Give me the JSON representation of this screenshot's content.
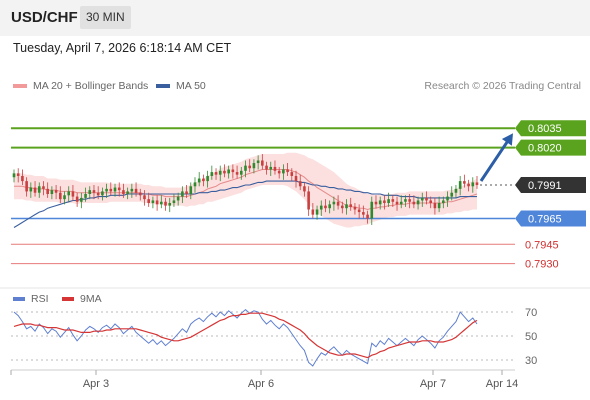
{
  "header": {
    "symbol": "USD/CHF",
    "timeframe": "30 MIN"
  },
  "datetime": "Tuesday, April 7, 2026 6:18:14 AM CET",
  "legend": {
    "ma20_bb": "MA 20 + Bollinger Bands",
    "ma50": "MA 50"
  },
  "source": "Research © 2026 Trading Central",
  "rsi_legend": {
    "rsi": "RSI",
    "ma9": "9MA"
  },
  "colors": {
    "resistance": "#5aa31e",
    "current": "#333333",
    "pivot": "#4f86d9",
    "support": "#e05858",
    "band": "#fbd9d9",
    "ma20": "#e58a8a",
    "ma50": "#3a5f9f",
    "arrow": "#2b5ea6",
    "up": "#2f8a2f",
    "down": "#c94040",
    "rsi": "#5f7fd0",
    "rsi_ma": "#d63535"
  },
  "chart_data": {
    "type": "candlestick",
    "price_axis_range": [
      0.7915,
      0.806
    ],
    "levels": [
      {
        "label": "0.8035",
        "value": 0.8035,
        "kind": "resistance"
      },
      {
        "label": "0.8020",
        "value": 0.802,
        "kind": "resistance"
      },
      {
        "label": "0.7991",
        "value": 0.7991,
        "kind": "current"
      },
      {
        "label": "0.7965",
        "value": 0.7965,
        "kind": "pivot"
      },
      {
        "label": "0.7945",
        "value": 0.7945,
        "kind": "support"
      },
      {
        "label": "0.7930",
        "value": 0.793,
        "kind": "support"
      }
    ],
    "forecast_arrow": {
      "from_value": 0.7991,
      "to_value": 0.8035
    },
    "x_labels": [
      "Apr 3",
      "Apr 6",
      "Apr 7",
      "Apr 14"
    ],
    "closes": [
      0.8,
      0.7998,
      0.7994,
      0.7986,
      0.7989,
      0.7985,
      0.799,
      0.7988,
      0.7984,
      0.7987,
      0.7985,
      0.798,
      0.7983,
      0.7986,
      0.7982,
      0.7978,
      0.7981,
      0.7984,
      0.7987,
      0.7985,
      0.7983,
      0.7986,
      0.7988,
      0.7986,
      0.7989,
      0.7987,
      0.7984,
      0.7986,
      0.7988,
      0.7985,
      0.7983,
      0.798,
      0.7977,
      0.7979,
      0.7976,
      0.7978,
      0.7975,
      0.7977,
      0.7979,
      0.7982,
      0.7986,
      0.7984,
      0.799,
      0.7993,
      0.7996,
      0.7994,
      0.7998,
      0.8001,
      0.7999,
      0.8002,
      0.8,
      0.8003,
      0.8001,
      0.7999,
      0.8002,
      0.8006,
      0.8004,
      0.8008,
      0.801,
      0.8006,
      0.8003,
      0.8005,
      0.8002,
      0.8,
      0.8003,
      0.8001,
      0.7998,
      0.7994,
      0.799,
      0.7986,
      0.7972,
      0.7968,
      0.7972,
      0.7975,
      0.7973,
      0.7976,
      0.7978,
      0.7975,
      0.7973,
      0.7976,
      0.7974,
      0.7972,
      0.797,
      0.7968,
      0.7965,
      0.7978,
      0.7976,
      0.7979,
      0.7977,
      0.798,
      0.7978,
      0.7976,
      0.7978,
      0.798,
      0.7978,
      0.7976,
      0.7979,
      0.7981,
      0.7979,
      0.7977,
      0.7973,
      0.7977,
      0.7979,
      0.7982,
      0.7985,
      0.7988,
      0.7994,
      0.7992,
      0.799,
      0.7993,
      0.7991
    ],
    "ma20": [
      0.799,
      0.799,
      0.799,
      0.7989,
      0.7989,
      0.7988,
      0.7988,
      0.7988,
      0.7987,
      0.7987,
      0.7987,
      0.7986,
      0.7986,
      0.7986,
      0.7986,
      0.7985,
      0.7985,
      0.7985,
      0.7985,
      0.7985,
      0.7985,
      0.7985,
      0.7985,
      0.7985,
      0.7985,
      0.7985,
      0.7985,
      0.7985,
      0.7985,
      0.7985,
      0.7985,
      0.7984,
      0.7984,
      0.7983,
      0.7983,
      0.7983,
      0.7982,
      0.7982,
      0.7982,
      0.7982,
      0.7982,
      0.7982,
      0.7983,
      0.7984,
      0.7985,
      0.7986,
      0.7988,
      0.7989,
      0.799,
      0.7992,
      0.7993,
      0.7994,
      0.7995,
      0.7996,
      0.7997,
      0.7999,
      0.8,
      0.8001,
      0.8002,
      0.8003,
      0.8003,
      0.8003,
      0.8003,
      0.8003,
      0.8003,
      0.8003,
      0.8002,
      0.8001,
      0.7999,
      0.7997,
      0.7994,
      0.7992,
      0.7989,
      0.7987,
      0.7985,
      0.7983,
      0.7981,
      0.7979,
      0.7977,
      0.7975,
      0.7974,
      0.7974,
      0.7973,
      0.7973,
      0.7972,
      0.7973,
      0.7973,
      0.7974,
      0.7974,
      0.7975,
      0.7975,
      0.7976,
      0.7976,
      0.7976,
      0.7977,
      0.7977,
      0.7977,
      0.7977,
      0.7977,
      0.7977,
      0.7977,
      0.7977,
      0.7977,
      0.7978,
      0.7978,
      0.7979,
      0.798,
      0.7981,
      0.7982,
      0.7983,
      0.7984
    ],
    "band_width": [
      0.001,
      0.001,
      0.001,
      0.001,
      0.001,
      0.001,
      0.001,
      0.001,
      0.0009,
      0.0009,
      0.0009,
      0.0009,
      0.0009,
      0.0009,
      0.0009,
      0.0009,
      0.0008,
      0.0008,
      0.0008,
      0.0008,
      0.0008,
      0.0008,
      0.0008,
      0.0007,
      0.0007,
      0.0007,
      0.0007,
      0.0007,
      0.0007,
      0.0007,
      0.0007,
      0.0007,
      0.0007,
      0.0007,
      0.0007,
      0.0007,
      0.0007,
      0.0007,
      0.0007,
      0.0007,
      0.0007,
      0.0008,
      0.0008,
      0.0009,
      0.0009,
      0.001,
      0.001,
      0.0011,
      0.0011,
      0.0012,
      0.0012,
      0.0012,
      0.0012,
      0.0012,
      0.0012,
      0.0012,
      0.0012,
      0.0012,
      0.0012,
      0.0012,
      0.0012,
      0.0012,
      0.0012,
      0.0012,
      0.0012,
      0.0013,
      0.0014,
      0.0015,
      0.0016,
      0.0017,
      0.0018,
      0.0019,
      0.002,
      0.002,
      0.002,
      0.002,
      0.002,
      0.0019,
      0.0018,
      0.0017,
      0.0016,
      0.0015,
      0.0014,
      0.0013,
      0.0012,
      0.0011,
      0.001,
      0.001,
      0.0009,
      0.0009,
      0.0009,
      0.0009,
      0.0009,
      0.0009,
      0.0009,
      0.0009,
      0.0009,
      0.0009,
      0.0009,
      0.0009,
      0.0009,
      0.0009,
      0.0009,
      0.0009,
      0.0009,
      0.0009,
      0.001,
      0.001,
      0.0011,
      0.0011,
      0.0012
    ],
    "ma50": [
      0.7958,
      0.796,
      0.7962,
      0.7964,
      0.7966,
      0.7968,
      0.797,
      0.7971,
      0.7973,
      0.7974,
      0.7975,
      0.7976,
      0.7977,
      0.7978,
      0.7979,
      0.7979,
      0.798,
      0.798,
      0.7981,
      0.7981,
      0.7982,
      0.7982,
      0.7982,
      0.7983,
      0.7983,
      0.7983,
      0.7983,
      0.7984,
      0.7984,
      0.7984,
      0.7984,
      0.7984,
      0.7984,
      0.7984,
      0.7984,
      0.7984,
      0.7984,
      0.7984,
      0.7984,
      0.7984,
      0.7984,
      0.7984,
      0.7984,
      0.7984,
      0.7985,
      0.7985,
      0.7985,
      0.7986,
      0.7986,
      0.7987,
      0.7987,
      0.7988,
      0.7989,
      0.7989,
      0.799,
      0.7991,
      0.7991,
      0.7992,
      0.7993,
      0.7993,
      0.7994,
      0.7994,
      0.7994,
      0.7994,
      0.7994,
      0.7994,
      0.7994,
      0.7994,
      0.7993,
      0.7993,
      0.7992,
      0.7991,
      0.7991,
      0.799,
      0.799,
      0.7989,
      0.7989,
      0.7988,
      0.7988,
      0.7987,
      0.7987,
      0.7986,
      0.7986,
      0.7985,
      0.7985,
      0.7984,
      0.7984,
      0.7984,
      0.7983,
      0.7983,
      0.7983,
      0.7983,
      0.7982,
      0.7982,
      0.7982,
      0.7982,
      0.7981,
      0.7981,
      0.7981,
      0.7981,
      0.7981,
      0.7981,
      0.7981,
      0.7981,
      0.7981,
      0.7981,
      0.7982,
      0.7982,
      0.7982,
      0.7982,
      0.7982
    ],
    "rsi_axis_range": [
      20,
      80
    ],
    "rsi_ticks": [
      70,
      50,
      30
    ],
    "rsi": [
      70,
      67,
      62,
      56,
      58,
      54,
      60,
      57,
      52,
      56,
      54,
      49,
      53,
      57,
      51,
      46,
      50,
      55,
      58,
      56,
      53,
      57,
      59,
      56,
      60,
      57,
      52,
      55,
      58,
      53,
      50,
      47,
      44,
      47,
      43,
      46,
      42,
      45,
      48,
      52,
      56,
      53,
      60,
      63,
      65,
      62,
      66,
      69,
      66,
      70,
      67,
      71,
      68,
      65,
      69,
      72,
      69,
      71,
      70,
      64,
      60,
      63,
      59,
      56,
      60,
      57,
      52,
      47,
      42,
      38,
      28,
      25,
      31,
      36,
      34,
      38,
      41,
      37,
      34,
      38,
      35,
      33,
      31,
      29,
      27,
      44,
      41,
      46,
      43,
      48,
      45,
      42,
      45,
      48,
      45,
      42,
      47,
      50,
      47,
      44,
      40,
      46,
      49,
      54,
      58,
      62,
      70,
      66,
      62,
      65,
      60
    ],
    "rsi_ma": [
      58,
      59,
      60,
      60,
      60,
      59,
      59,
      58,
      57,
      57,
      57,
      56,
      55,
      55,
      55,
      54,
      53,
      53,
      53,
      54,
      54,
      54,
      55,
      55,
      56,
      56,
      56,
      56,
      56,
      56,
      55,
      54,
      53,
      52,
      51,
      49,
      48,
      47,
      46,
      46,
      47,
      48,
      49,
      51,
      53,
      55,
      57,
      59,
      61,
      63,
      64,
      66,
      67,
      67,
      68,
      68,
      69,
      69,
      69,
      69,
      68,
      67,
      66,
      64,
      63,
      61,
      59,
      57,
      55,
      52,
      48,
      45,
      42,
      40,
      38,
      36,
      35,
      34,
      34,
      35,
      35,
      35,
      34,
      33,
      32,
      34,
      35,
      37,
      38,
      40,
      41,
      42,
      43,
      44,
      45,
      45,
      45,
      46,
      46,
      46,
      45,
      45,
      45,
      46,
      47,
      49,
      52,
      55,
      58,
      61,
      63
    ]
  }
}
